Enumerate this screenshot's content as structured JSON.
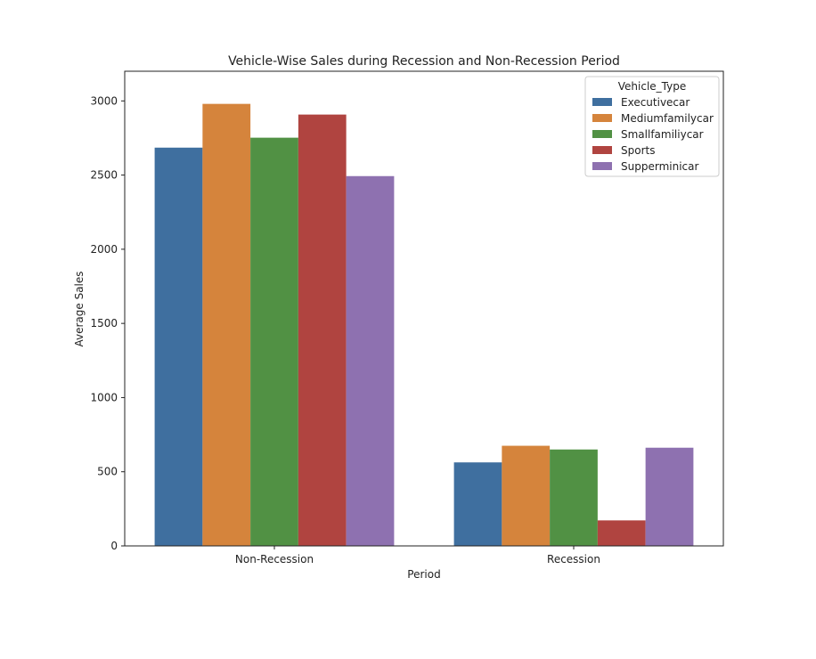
{
  "chart_data": {
    "type": "bar",
    "title": "Vehicle-Wise Sales during Recession and Non-Recession Period",
    "xlabel": "Period",
    "ylabel": "Average Sales",
    "categories": [
      "Non-Recession",
      "Recession"
    ],
    "ylim": [
      0,
      3200
    ],
    "yticks": [
      0,
      500,
      1000,
      1500,
      2000,
      2500,
      3000
    ],
    "grid": false,
    "legend": {
      "title": "Vehicle_Type",
      "placement": "top-right"
    },
    "series": [
      {
        "name": "Executivecar",
        "color": "#3f6f9f",
        "values": [
          2685,
          563
        ]
      },
      {
        "name": "Mediumfamilycar",
        "color": "#d5843c",
        "values": [
          2980,
          675
        ]
      },
      {
        "name": "Smallfamiliycar",
        "color": "#519144",
        "values": [
          2752,
          650
        ]
      },
      {
        "name": "Sports",
        "color": "#b04440",
        "values": [
          2908,
          172
        ]
      },
      {
        "name": "Supperminicar",
        "color": "#8e71b0",
        "values": [
          2493,
          662
        ]
      }
    ]
  }
}
